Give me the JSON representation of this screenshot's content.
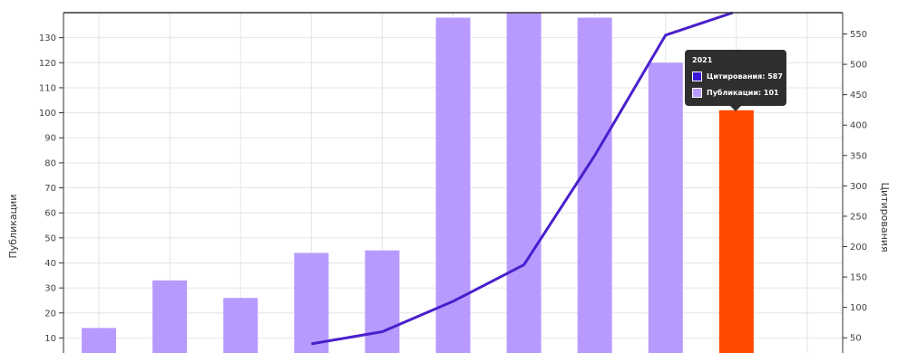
{
  "chart_data": {
    "type": "bar",
    "categories": [
      "",
      "",
      "",
      "",
      "",
      "",
      "",
      "",
      "",
      "",
      ""
    ],
    "series": [
      {
        "type": "bar",
        "axis": "left",
        "values": [
          14,
          33,
          26,
          44,
          45,
          138,
          140,
          138,
          120,
          101,
          null
        ]
      },
      {
        "type": "line",
        "axis": "right",
        "values": [
          null,
          null,
          null,
          40,
          60,
          110,
          170,
          350,
          548,
          587,
          null
        ]
      }
    ],
    "ylabel_left": "Публикации",
    "ylabel_right": "Цитирования",
    "ylim_left": [
      4,
      140
    ],
    "ylim_right": [
      25,
      585
    ],
    "yticks_left": [
      10,
      20,
      30,
      40,
      50,
      60,
      70,
      80,
      90,
      100,
      110,
      120,
      130
    ],
    "yticks_right": [
      50,
      100,
      150,
      200,
      250,
      300,
      350,
      400,
      450,
      500,
      550
    ],
    "grid": true,
    "highlight_index": 9,
    "colors": {
      "bar": "#b89aff",
      "highlight": "#ff4a00",
      "line": "#4a1fcc",
      "grid": "#e4e4e4"
    },
    "tooltip": {
      "title": "2021",
      "rows": [
        {
          "label": "Цитирования: 587",
          "color": "#3b17d9"
        },
        {
          "label": "Публикации: 101",
          "color": "#b89aff"
        }
      ]
    }
  }
}
